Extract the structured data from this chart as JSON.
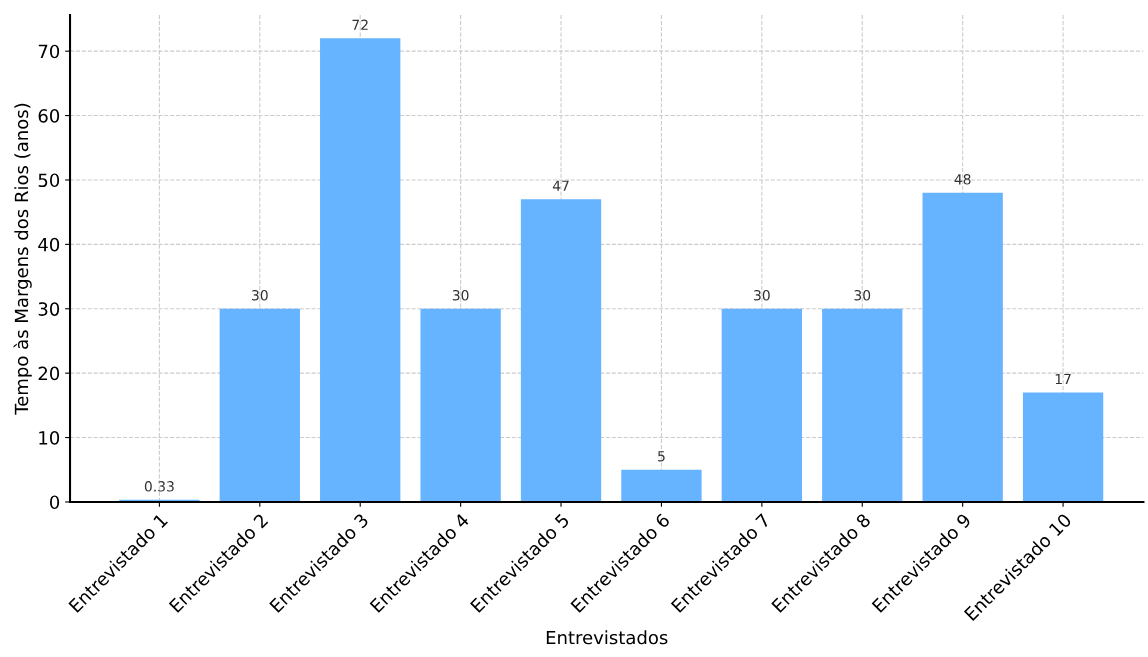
{
  "chart_data": {
    "type": "bar",
    "xlabel": "Entrevistados",
    "ylabel": "Tempo às Margens dos Rios (anos)",
    "categories": [
      "Entrevistado 1",
      "Entrevistado 2",
      "Entrevistado 3",
      "Entrevistado 4",
      "Entrevistado 5",
      "Entrevistado 6",
      "Entrevistado 7",
      "Entrevistado 8",
      "Entrevistado 9",
      "Entrevistado 10"
    ],
    "values": [
      0.33,
      30,
      72,
      30,
      47,
      5,
      30,
      30,
      48,
      17
    ],
    "color": "#66b3ff",
    "data_labels": true,
    "grid": true,
    "ylim": [
      0,
      75.6
    ],
    "yticks": [
      0,
      10,
      20,
      30,
      40,
      50,
      60,
      70
    ]
  }
}
